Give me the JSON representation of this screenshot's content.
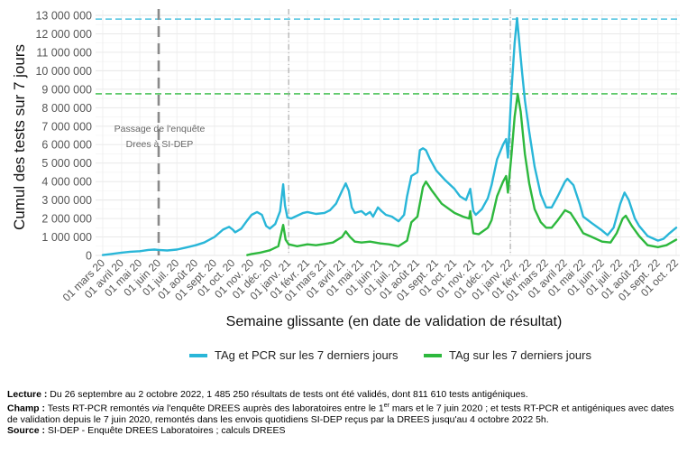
{
  "chart_data": {
    "type": "line",
    "ylabel": "Cumul des tests sur 7 jours",
    "xlabel": "Semaine glissante (en date de validation de résultat)",
    "ylim": [
      0,
      13000000
    ],
    "y_ticks": [
      0,
      1000000,
      2000000,
      3000000,
      4000000,
      5000000,
      6000000,
      7000000,
      8000000,
      9000000,
      10000000,
      11000000,
      12000000,
      13000000
    ],
    "y_tick_labels": [
      "0",
      "1 000 000",
      "2 000 000",
      "3 000 000",
      "4 000 000",
      "5 000 000",
      "6 000 000",
      "7 000 000",
      "8 000 000",
      "9 000 000",
      "10 000 000",
      "11 000 000",
      "12 000 000",
      "13 000 000"
    ],
    "xlim": [
      "2020-03-01",
      "2022-10-01"
    ],
    "x_ticks": [
      "2020-03-01",
      "2020-04-01",
      "2020-05-01",
      "2020-06-01",
      "2020-07-01",
      "2020-08-01",
      "2020-09-01",
      "2020-10-01",
      "2020-11-01",
      "2020-12-01",
      "2021-01-01",
      "2021-02-01",
      "2021-03-01",
      "2021-04-01",
      "2021-05-01",
      "2021-06-01",
      "2021-07-01",
      "2021-08-01",
      "2021-09-01",
      "2021-10-01",
      "2021-11-01",
      "2021-12-01",
      "2022-01-01",
      "2022-02-01",
      "2022-03-01",
      "2022-04-01",
      "2022-05-01",
      "2022-06-01",
      "2022-07-01",
      "2022-08-01",
      "2022-09-01",
      "2022-10-01"
    ],
    "x_tick_labels": [
      "01 mars 20",
      "01 avril 20",
      "01 mai 20",
      "01 juin 20",
      "01 juil. 20",
      "01 août 20",
      "01 sept. 20",
      "01 oct. 20",
      "01 nov. 20",
      "01 déc. 20",
      "01 janv. 21",
      "01 févr. 21",
      "01 mars 21",
      "01 avril 21",
      "01 mai 21",
      "01 juin 21",
      "01 juil. 21",
      "01 août 21",
      "01 sept. 21",
      "01 oct. 21",
      "01 nov. 21",
      "01 déc. 21",
      "01 janv. 22",
      "01 févr. 22",
      "01 mars 22",
      "01 avril 22",
      "01 mai 22",
      "01 juin 22",
      "01 juil. 22",
      "01 août 22",
      "01 sept. 22",
      "01 oct. 22"
    ],
    "grid": true,
    "legend_position": "bottom",
    "series": [
      {
        "name": "TAg et PCR sur les 7 derniers jours",
        "color": "#29b6d8",
        "points": [
          [
            "2020-03-01",
            20000
          ],
          [
            "2020-03-15",
            80000
          ],
          [
            "2020-04-01",
            150000
          ],
          [
            "2020-04-15",
            200000
          ],
          [
            "2020-05-01",
            230000
          ],
          [
            "2020-05-15",
            300000
          ],
          [
            "2020-05-25",
            320000
          ],
          [
            "2020-06-01",
            300000
          ],
          [
            "2020-06-15",
            270000
          ],
          [
            "2020-07-01",
            320000
          ],
          [
            "2020-07-15",
            420000
          ],
          [
            "2020-08-01",
            550000
          ],
          [
            "2020-08-15",
            700000
          ],
          [
            "2020-09-01",
            1000000
          ],
          [
            "2020-09-15",
            1400000
          ],
          [
            "2020-09-25",
            1550000
          ],
          [
            "2020-10-01",
            1400000
          ],
          [
            "2020-10-05",
            1250000
          ],
          [
            "2020-10-15",
            1450000
          ],
          [
            "2020-10-25",
            1900000
          ],
          [
            "2020-11-01",
            2200000
          ],
          [
            "2020-11-10",
            2350000
          ],
          [
            "2020-11-18",
            2200000
          ],
          [
            "2020-11-25",
            1600000
          ],
          [
            "2020-12-01",
            1450000
          ],
          [
            "2020-12-10",
            1700000
          ],
          [
            "2020-12-18",
            2400000
          ],
          [
            "2020-12-23",
            3850000
          ],
          [
            "2020-12-26",
            2700000
          ],
          [
            "2020-12-30",
            2050000
          ],
          [
            "2021-01-05",
            2000000
          ],
          [
            "2021-01-15",
            2150000
          ],
          [
            "2021-01-25",
            2300000
          ],
          [
            "2021-02-01",
            2350000
          ],
          [
            "2021-02-15",
            2250000
          ],
          [
            "2021-03-01",
            2300000
          ],
          [
            "2021-03-10",
            2450000
          ],
          [
            "2021-03-20",
            2800000
          ],
          [
            "2021-03-30",
            3500000
          ],
          [
            "2021-04-05",
            3900000
          ],
          [
            "2021-04-10",
            3500000
          ],
          [
            "2021-04-15",
            2600000
          ],
          [
            "2021-04-20",
            2300000
          ],
          [
            "2021-05-01",
            2400000
          ],
          [
            "2021-05-08",
            2200000
          ],
          [
            "2021-05-15",
            2350000
          ],
          [
            "2021-05-20",
            2100000
          ],
          [
            "2021-05-28",
            2600000
          ],
          [
            "2021-06-03",
            2400000
          ],
          [
            "2021-06-10",
            2200000
          ],
          [
            "2021-06-20",
            2100000
          ],
          [
            "2021-07-01",
            1850000
          ],
          [
            "2021-07-10",
            2200000
          ],
          [
            "2021-07-15",
            3200000
          ],
          [
            "2021-07-22",
            4300000
          ],
          [
            "2021-08-01",
            4500000
          ],
          [
            "2021-08-05",
            5700000
          ],
          [
            "2021-08-10",
            5800000
          ],
          [
            "2021-08-15",
            5700000
          ],
          [
            "2021-08-22",
            5200000
          ],
          [
            "2021-09-01",
            4600000
          ],
          [
            "2021-09-15",
            4100000
          ],
          [
            "2021-10-01",
            3600000
          ],
          [
            "2021-10-10",
            3200000
          ],
          [
            "2021-10-20",
            3000000
          ],
          [
            "2021-10-27",
            3600000
          ],
          [
            "2021-11-01",
            2400000
          ],
          [
            "2021-11-05",
            2200000
          ],
          [
            "2021-11-15",
            2500000
          ],
          [
            "2021-11-25",
            3100000
          ],
          [
            "2021-12-01",
            3800000
          ],
          [
            "2021-12-10",
            5200000
          ],
          [
            "2021-12-20",
            6000000
          ],
          [
            "2021-12-25",
            6300000
          ],
          [
            "2021-12-28",
            5300000
          ],
          [
            "2022-01-03",
            9000000
          ],
          [
            "2022-01-08",
            11500000
          ],
          [
            "2022-01-12",
            12850000
          ],
          [
            "2022-01-15",
            11800000
          ],
          [
            "2022-01-20",
            10000000
          ],
          [
            "2022-01-25",
            8400000
          ],
          [
            "2022-02-01",
            6700000
          ],
          [
            "2022-02-10",
            4800000
          ],
          [
            "2022-02-20",
            3300000
          ],
          [
            "2022-03-01",
            2600000
          ],
          [
            "2022-03-10",
            2600000
          ],
          [
            "2022-03-20",
            3200000
          ],
          [
            "2022-04-01",
            4000000
          ],
          [
            "2022-04-05",
            4150000
          ],
          [
            "2022-04-15",
            3800000
          ],
          [
            "2022-04-25",
            2800000
          ],
          [
            "2022-05-01",
            2100000
          ],
          [
            "2022-05-15",
            1750000
          ],
          [
            "2022-06-01",
            1350000
          ],
          [
            "2022-06-10",
            1100000
          ],
          [
            "2022-06-20",
            1500000
          ],
          [
            "2022-07-01",
            2800000
          ],
          [
            "2022-07-08",
            3400000
          ],
          [
            "2022-07-15",
            3000000
          ],
          [
            "2022-07-25",
            2000000
          ],
          [
            "2022-08-01",
            1600000
          ],
          [
            "2022-08-15",
            1050000
          ],
          [
            "2022-09-01",
            800000
          ],
          [
            "2022-09-10",
            900000
          ],
          [
            "2022-09-20",
            1200000
          ],
          [
            "2022-10-01",
            1500000
          ]
        ]
      },
      {
        "name": "TAg sur les 7 derniers jours",
        "color": "#2db83d",
        "points": [
          [
            "2020-10-25",
            20000
          ],
          [
            "2020-11-01",
            80000
          ],
          [
            "2020-11-15",
            150000
          ],
          [
            "2020-12-01",
            280000
          ],
          [
            "2020-12-15",
            500000
          ],
          [
            "2020-12-23",
            1650000
          ],
          [
            "2020-12-27",
            850000
          ],
          [
            "2021-01-01",
            600000
          ],
          [
            "2021-01-15",
            500000
          ],
          [
            "2021-02-01",
            600000
          ],
          [
            "2021-02-15",
            550000
          ],
          [
            "2021-03-01",
            620000
          ],
          [
            "2021-03-15",
            700000
          ],
          [
            "2021-03-30",
            1000000
          ],
          [
            "2021-04-05",
            1300000
          ],
          [
            "2021-04-12",
            1000000
          ],
          [
            "2021-04-20",
            750000
          ],
          [
            "2021-05-01",
            700000
          ],
          [
            "2021-05-15",
            750000
          ],
          [
            "2021-06-01",
            650000
          ],
          [
            "2021-06-15",
            600000
          ],
          [
            "2021-07-01",
            500000
          ],
          [
            "2021-07-15",
            800000
          ],
          [
            "2021-07-22",
            1800000
          ],
          [
            "2021-08-01",
            2100000
          ],
          [
            "2021-08-10",
            3700000
          ],
          [
            "2021-08-15",
            4000000
          ],
          [
            "2021-08-25",
            3500000
          ],
          [
            "2021-09-10",
            2800000
          ],
          [
            "2021-10-01",
            2300000
          ],
          [
            "2021-10-15",
            2100000
          ],
          [
            "2021-10-25",
            2000000
          ],
          [
            "2021-10-27",
            2400000
          ],
          [
            "2021-11-01",
            1200000
          ],
          [
            "2021-11-10",
            1150000
          ],
          [
            "2021-11-25",
            1500000
          ],
          [
            "2021-12-01",
            1900000
          ],
          [
            "2021-12-10",
            3200000
          ],
          [
            "2021-12-20",
            4000000
          ],
          [
            "2021-12-25",
            4300000
          ],
          [
            "2021-12-28",
            3400000
          ],
          [
            "2022-01-03",
            5500000
          ],
          [
            "2022-01-08",
            7500000
          ],
          [
            "2022-01-13",
            8750000
          ],
          [
            "2022-01-18",
            7800000
          ],
          [
            "2022-01-25",
            5500000
          ],
          [
            "2022-02-01",
            3900000
          ],
          [
            "2022-02-10",
            2500000
          ],
          [
            "2022-02-20",
            1800000
          ],
          [
            "2022-03-01",
            1500000
          ],
          [
            "2022-03-10",
            1500000
          ],
          [
            "2022-03-20",
            1900000
          ],
          [
            "2022-04-01",
            2450000
          ],
          [
            "2022-04-10",
            2300000
          ],
          [
            "2022-04-20",
            1800000
          ],
          [
            "2022-05-01",
            1200000
          ],
          [
            "2022-05-15",
            1000000
          ],
          [
            "2022-06-01",
            750000
          ],
          [
            "2022-06-15",
            700000
          ],
          [
            "2022-06-25",
            1200000
          ],
          [
            "2022-07-05",
            2000000
          ],
          [
            "2022-07-10",
            2150000
          ],
          [
            "2022-07-20",
            1600000
          ],
          [
            "2022-08-01",
            1050000
          ],
          [
            "2022-08-15",
            550000
          ],
          [
            "2022-09-01",
            450000
          ],
          [
            "2022-09-15",
            550000
          ],
          [
            "2022-10-01",
            850000
          ]
        ]
      }
    ],
    "reference_lines": [
      {
        "axis": "y",
        "value": 12800000,
        "color": "#29b6d8",
        "style": "dashed"
      },
      {
        "axis": "y",
        "value": 8750000,
        "color": "#2db83d",
        "style": "dashed"
      },
      {
        "axis": "x",
        "value": "2020-06-01",
        "color": "#8a8a8a",
        "style": "dashed-thick"
      },
      {
        "axis": "x",
        "value": "2021-01-01",
        "color": "#9e9e9e",
        "style": "dashdot"
      },
      {
        "axis": "x",
        "value": "2022-01-01",
        "color": "#9e9e9e",
        "style": "dashdot"
      }
    ],
    "annotation": "Passage de l'enquête\nDrees à SI-DEP",
    "annotation_date": "2020-06-01",
    "annotation_value": 6700000
  },
  "legend": {
    "item1": "TAg et PCR sur les 7 derniers jours",
    "item2": "TAg sur les 7 derniers jours"
  },
  "notes": {
    "lecture_label": "Lecture :",
    "lecture_text": " Du 26 septembre au 2 octobre 2022, 1 485 250 résultats de tests ont été validés, dont 811 610 tests antigéniques.",
    "champ_label": "Champ :",
    "champ_text_1": " Tests RT-PCR remontés ",
    "champ_via": "via",
    "champ_text_2": " l'enquête DREES auprès des laboratoires entre le 1",
    "champ_sup": "er",
    "champ_text_3": " mars et le 7 juin 2020 ; et tests RT-PCR et antigéniques avec dates de validation depuis le 7 juin 2020, remontés dans les envois quotidiens SI-DEP reçus par la DREES jusqu'au 4 octobre 2022 5h.",
    "source_label": "Source :",
    "source_text": " SI-DEP - Enquête DREES Laboratoires ; calculs DREES"
  }
}
